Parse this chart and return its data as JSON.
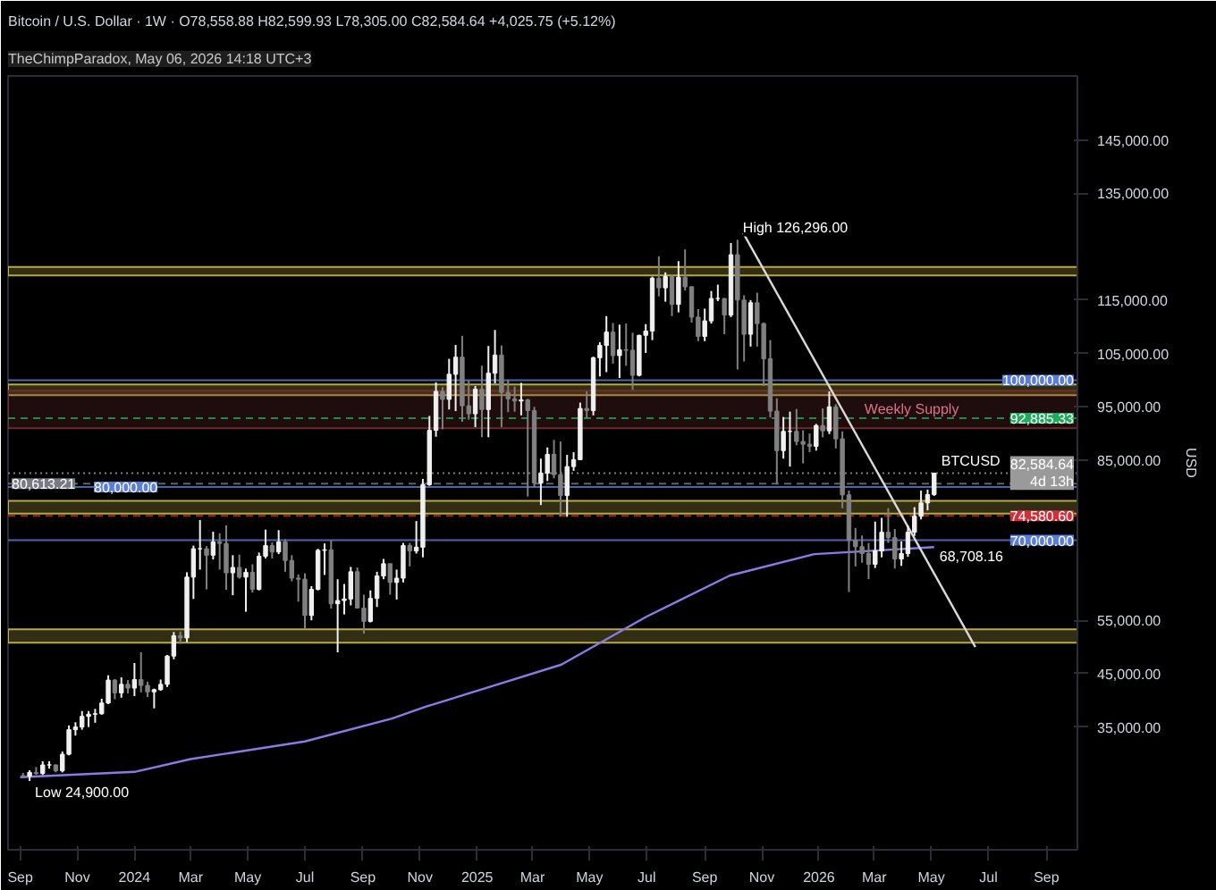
{
  "chart_data": {
    "type": "candlestick",
    "title": "Bitcoin / U.S. Dollar · 1W · O78,558.88 H82,599.93 L78,305.00 C82,584.64 +4,025.75 (+5.12%)",
    "ylabel": "USD",
    "annotations": [
      "TheChimpParadox, May 06, 2026 14:18 UTC+3",
      {
        "text": "BTCUSD",
        "x": "2026-05-06",
        "y": 82584.64
      },
      {
        "text": "High 126,296.00",
        "x": "2025-10-06",
        "y": 126296
      },
      {
        "text": "68,708.16",
        "x": "2026-05-04",
        "y": 68708.16
      },
      {
        "text": "Low 24,900.00",
        "x": "2023-09-11",
        "y": 24900
      }
    ],
    "xlim": [
      "2023-08-19",
      "2026-10-04"
    ],
    "xticks": [
      {
        "value": "2023-09-01",
        "label": "Sep"
      },
      {
        "value": "2023-11-01",
        "label": "Nov"
      },
      {
        "value": "2024-01-01",
        "label": "2024"
      },
      {
        "value": "2024-03-01",
        "label": "Mar"
      },
      {
        "value": "2024-05-01",
        "label": "May"
      },
      {
        "value": "2024-07-01",
        "label": "Jul"
      },
      {
        "value": "2024-09-01",
        "label": "Sep"
      },
      {
        "value": "2024-11-01",
        "label": "Nov"
      },
      {
        "value": "2025-01-01",
        "label": "2025"
      },
      {
        "value": "2025-03-01",
        "label": "Mar"
      },
      {
        "value": "2025-05-01",
        "label": "May"
      },
      {
        "value": "2025-07-01",
        "label": "Jul"
      },
      {
        "value": "2025-09-01",
        "label": "Sep"
      },
      {
        "value": "2025-11-01",
        "label": "Nov"
      },
      {
        "value": "2026-01-01",
        "label": "2026"
      },
      {
        "value": "2026-03-01",
        "label": "Mar"
      },
      {
        "value": "2026-05-01",
        "label": "May"
      },
      {
        "value": "2026-07-01",
        "label": "Jul"
      },
      {
        "value": "2026-09-01",
        "label": "Sep"
      }
    ],
    "ylim": [
      12000,
      157000
    ],
    "yticks": [
      {
        "value": 35000,
        "label": "35,000.00"
      },
      {
        "value": 45000,
        "label": "45,000.00"
      },
      {
        "value": 55000,
        "label": "55,000.00"
      },
      {
        "value": 85000,
        "label": "85,000.00"
      },
      {
        "value": 95000,
        "label": "95,000.00"
      },
      {
        "value": 105000,
        "label": "105,000.00"
      },
      {
        "value": 115000,
        "label": "115,000.00"
      },
      {
        "value": 135000,
        "label": "135,000.00"
      },
      {
        "value": 145000,
        "label": "145,000.00"
      }
    ],
    "grid": false,
    "ref_lines": [
      {
        "axis": "y",
        "value": 100000,
        "label": "100,000.00",
        "color": "#5b7fd6",
        "line_style": "solid"
      },
      {
        "axis": "y",
        "value": 80000,
        "label": "80,000.00",
        "color": "#5b7fd6",
        "line_style": "solid"
      },
      {
        "axis": "y",
        "value": 70000,
        "label": "70,000.00",
        "color": "#5b7fd6",
        "line_style": "solid"
      },
      {
        "axis": "y",
        "value": 82584.64,
        "label": "82,584.64\n4d 13h",
        "color": "#9a9a9a",
        "line_style": "dotted"
      },
      {
        "axis": "y",
        "value": 92885.33,
        "label": "92,885.33",
        "color": "#22ab5e",
        "line_style": "dashed"
      },
      {
        "axis": "y",
        "value": 80613.21,
        "label": "80,613.21",
        "color": "#787b86",
        "line_style": "dashed"
      },
      {
        "axis": "y",
        "value": 74580.6,
        "label": "74,580.60",
        "color": "#d0303a",
        "line_style": "dashed"
      }
    ],
    "bands": [
      {
        "axis": "y",
        "from": 119600,
        "to": 121200,
        "color": "#c8b84a"
      },
      {
        "axis": "y",
        "from": 97200,
        "to": 99200,
        "color": "#c8b84a"
      },
      {
        "axis": "y",
        "from": 91000,
        "to": 98000,
        "label": "Weekly Supply",
        "color": "#7a2f30"
      },
      {
        "axis": "y",
        "from": 75000,
        "to": 77400,
        "color": "#c8b84a"
      },
      {
        "axis": "y",
        "from": 50800,
        "to": 53300,
        "color": "#c8b84a"
      }
    ],
    "series": [
      {
        "type": "line",
        "color": "#8c7ae6",
        "x": [
          "2023-09-01",
          "2024-01-01",
          "2024-03-01",
          "2024-07-01",
          "2024-10-02",
          "2024-11-07",
          "2025-04-01",
          "2025-07-01",
          "2025-09-28",
          "2025-12-27",
          "2026-05-04"
        ],
        "values": [
          25600,
          26600,
          29000,
          32300,
          36600,
          38800,
          46700,
          55700,
          63400,
          67400,
          68708.16
        ]
      },
      {
        "type": "line",
        "color": "#d9d9d9",
        "x": [
          "2025-10-12",
          "2026-06-17"
        ],
        "values": [
          127600,
          50000
        ]
      },
      {
        "colors": [
          "#808080",
          "#f0f0f0",
          "#808080",
          "#f0f0f0",
          "#f0f0f0",
          "#808080",
          "#f0f0f0",
          "#f0f0f0",
          "#f0f0f0",
          "#f0f0f0",
          "#f0f0f0",
          "#f0f0f0",
          "#f0f0f0",
          "#f0f0f0",
          "#808080",
          "#f0f0f0",
          "#808080",
          "#f0f0f0",
          "#808080",
          "#808080",
          "#f0f0f0",
          "#f0f0f0",
          "#f0f0f0",
          "#f0f0f0",
          "#808080",
          "#f0f0f0",
          "#f0f0f0",
          "#f0f0f0",
          "#808080",
          "#f0f0f0",
          "#808080",
          "#808080",
          "#f0f0f0",
          "#808080",
          "#f0f0f0",
          "#808080",
          "#f0f0f0",
          "#f0f0f0",
          "#808080",
          "#f0f0f0",
          "#808080",
          "#808080",
          "#808080",
          "#808080",
          "#f0f0f0",
          "#f0f0f0",
          "#f0f0f0",
          "#808080",
          "#f0f0f0",
          "#f0f0f0",
          "#f0f0f0",
          "#808080",
          "#808080",
          "#f0f0f0",
          "#f0f0f0",
          "#f0f0f0",
          "#808080",
          "#f0f0f0",
          "#f0f0f0",
          "#808080",
          "#f0f0f0",
          "#f0f0f0",
          "#f0f0f0",
          "#f0f0f0",
          "#808080",
          "#f0f0f0",
          "#f0f0f0",
          "#808080",
          "#808080",
          "#f0f0f0",
          "#808080",
          "#f0f0f0",
          "#f0f0f0",
          "#808080",
          "#808080",
          "#808080",
          "#f0f0f0",
          "#808080",
          "#808080",
          "#f0f0f0",
          "#f0f0f0",
          "#808080",
          "#808080",
          "#f0f0f0",
          "#f0f0f0",
          "#f0f0f0",
          "#808080",
          "#f0f0f0",
          "#f0f0f0",
          "#f0f0f0",
          "#808080",
          "#f0f0f0",
          "#808080",
          "#808080",
          "#f0f0f0",
          "#f0f0f0",
          "#f0f0f0",
          "#808080",
          "#f0f0f0",
          "#808080",
          "#f0f0f0",
          "#808080",
          "#808080",
          "#808080",
          "#f0f0f0",
          "#f0f0f0",
          "#f0f0f0",
          "#808080",
          "#f0f0f0",
          "#808080",
          "#808080",
          "#f0f0f0",
          "#808080",
          "#808080",
          "#808080",
          "#808080",
          "#f0f0f0",
          "#f0f0f0",
          "#808080",
          "#808080",
          "#808080",
          "#f0f0f0",
          "#808080",
          "#f0f0f0",
          "#808080",
          "#808080",
          "#808080",
          "#808080",
          "#808080",
          "#808080",
          "#f0f0f0",
          "#f0f0f0",
          "#808080",
          "#808080",
          "#f0f0f0",
          "#f0f0f0",
          "#f0f0f0",
          "#f0f0f0",
          "#f0f0f0",
          "#f0f0f0"
        ],
        "x": [
          "2023-09-04",
          "2023-09-11",
          "2023-09-18",
          "2023-09-25",
          "2023-10-02",
          "2023-10-09",
          "2023-10-16",
          "2023-10-23",
          "2023-10-30",
          "2023-11-06",
          "2023-11-13",
          "2023-11-20",
          "2023-11-27",
          "2023-12-04",
          "2023-12-11",
          "2023-12-18",
          "2023-12-25",
          "2024-01-01",
          "2024-01-08",
          "2024-01-15",
          "2024-01-22",
          "2024-01-29",
          "2024-02-05",
          "2024-02-12",
          "2024-02-19",
          "2024-02-26",
          "2024-03-04",
          "2024-03-11",
          "2024-03-18",
          "2024-03-25",
          "2024-04-01",
          "2024-04-08",
          "2024-04-15",
          "2024-04-22",
          "2024-04-29",
          "2024-05-06",
          "2024-05-13",
          "2024-05-20",
          "2024-05-27",
          "2024-06-03",
          "2024-06-10",
          "2024-06-17",
          "2024-06-24",
          "2024-07-01",
          "2024-07-08",
          "2024-07-15",
          "2024-07-22",
          "2024-07-29",
          "2024-08-05",
          "2024-08-12",
          "2024-08-19",
          "2024-08-26",
          "2024-09-02",
          "2024-09-09",
          "2024-09-16",
          "2024-09-23",
          "2024-09-30",
          "2024-10-07",
          "2024-10-14",
          "2024-10-21",
          "2024-10-28",
          "2024-11-04",
          "2024-11-11",
          "2024-11-18",
          "2024-11-25",
          "2024-12-02",
          "2024-12-09",
          "2024-12-16",
          "2024-12-23",
          "2024-12-30",
          "2025-01-06",
          "2025-01-13",
          "2025-01-20",
          "2025-01-27",
          "2025-02-03",
          "2025-02-10",
          "2025-02-17",
          "2025-02-24",
          "2025-03-03",
          "2025-03-10",
          "2025-03-17",
          "2025-03-24",
          "2025-03-31",
          "2025-04-07",
          "2025-04-14",
          "2025-04-21",
          "2025-04-28",
          "2025-05-05",
          "2025-05-12",
          "2025-05-19",
          "2025-05-26",
          "2025-06-02",
          "2025-06-09",
          "2025-06-16",
          "2025-06-23",
          "2025-06-30",
          "2025-07-07",
          "2025-07-14",
          "2025-07-21",
          "2025-07-28",
          "2025-08-04",
          "2025-08-11",
          "2025-08-18",
          "2025-08-25",
          "2025-09-01",
          "2025-09-08",
          "2025-09-15",
          "2025-09-22",
          "2025-09-29",
          "2025-10-06",
          "2025-10-13",
          "2025-10-20",
          "2025-10-27",
          "2025-11-03",
          "2025-11-10",
          "2025-11-17",
          "2025-11-24",
          "2025-12-01",
          "2025-12-08",
          "2025-12-15",
          "2025-12-22",
          "2025-12-29",
          "2026-01-05",
          "2026-01-12",
          "2026-01-19",
          "2026-01-26",
          "2026-02-02",
          "2026-02-09",
          "2026-02-16",
          "2026-02-23",
          "2026-03-02",
          "2026-03-09",
          "2026-03-16",
          "2026-03-23",
          "2026-03-30",
          "2026-04-06",
          "2026-04-13",
          "2026-04-20",
          "2026-04-27",
          "2026-05-04"
        ],
        "ohlc": [
          [
            25900,
            26400,
            25400,
            25800
          ],
          [
            25800,
            26900,
            24900,
            26500
          ],
          [
            26500,
            27500,
            26000,
            26300
          ],
          [
            26300,
            28600,
            26000,
            27900
          ],
          [
            27900,
            28600,
            27200,
            27900
          ],
          [
            27900,
            28000,
            26500,
            26800
          ],
          [
            26800,
            30400,
            26500,
            29900
          ],
          [
            29900,
            35300,
            29700,
            34500
          ],
          [
            34500,
            35900,
            33400,
            35000
          ],
          [
            35000,
            38000,
            34500,
            37000
          ],
          [
            37000,
            38000,
            35000,
            37400
          ],
          [
            37400,
            38400,
            35800,
            37500
          ],
          [
            37500,
            40300,
            37300,
            39500
          ],
          [
            39500,
            44700,
            39300,
            43800
          ],
          [
            43800,
            44000,
            40200,
            41400
          ],
          [
            41400,
            44300,
            40500,
            43000
          ],
          [
            43000,
            43800,
            41300,
            42300
          ],
          [
            42300,
            47000,
            40800,
            43900
          ],
          [
            43900,
            49000,
            41500,
            42800
          ],
          [
            42800,
            43500,
            40600,
            41600
          ],
          [
            41600,
            42200,
            38500,
            42000
          ],
          [
            42000,
            43900,
            41800,
            43000
          ],
          [
            43000,
            48500,
            42500,
            48300
          ],
          [
            48300,
            52800,
            47700,
            52100
          ],
          [
            52100,
            52900,
            50600,
            51700
          ],
          [
            51700,
            64000,
            50900,
            63100
          ],
          [
            63100,
            69000,
            59000,
            68400
          ],
          [
            68400,
            73800,
            64500,
            68400
          ],
          [
            68400,
            68900,
            60800,
            67200
          ],
          [
            67200,
            71600,
            66400,
            69700
          ],
          [
            69700,
            71300,
            64500,
            69400
          ],
          [
            69400,
            72800,
            60700,
            63900
          ],
          [
            63900,
            67200,
            59700,
            64900
          ],
          [
            64900,
            67300,
            62800,
            63100
          ],
          [
            63100,
            64700,
            56600,
            64000
          ],
          [
            64000,
            65500,
            60200,
            60800
          ],
          [
            60800,
            67700,
            60600,
            67000
          ],
          [
            67000,
            72000,
            66600,
            69000
          ],
          [
            69000,
            69600,
            66600,
            67800
          ],
          [
            67800,
            71900,
            67400,
            69700
          ],
          [
            69700,
            70200,
            64100,
            66200
          ],
          [
            66200,
            67200,
            62300,
            62900
          ],
          [
            62900,
            63600,
            58500,
            62700
          ],
          [
            62700,
            63800,
            53500,
            55900
          ],
          [
            55900,
            61400,
            55000,
            60800
          ],
          [
            60800,
            68400,
            60600,
            68100
          ],
          [
            68100,
            69400,
            63500,
            68200
          ],
          [
            68200,
            70000,
            57200,
            58100
          ],
          [
            58100,
            62700,
            49000,
            58700
          ],
          [
            58700,
            61800,
            56100,
            59000
          ],
          [
            59000,
            65000,
            57800,
            64100
          ],
          [
            64100,
            64900,
            57200,
            57300
          ],
          [
            57300,
            59800,
            52500,
            54800
          ],
          [
            54800,
            60600,
            54600,
            59100
          ],
          [
            59100,
            64100,
            57500,
            63300
          ],
          [
            63300,
            66500,
            62700,
            65600
          ],
          [
            65600,
            65600,
            59800,
            62100
          ],
          [
            62100,
            64500,
            58900,
            62900
          ],
          [
            62900,
            69500,
            62100,
            69000
          ],
          [
            69000,
            69500,
            65100,
            68000
          ],
          [
            68000,
            73600,
            67500,
            68700
          ],
          [
            68700,
            81500,
            66800,
            80400
          ],
          [
            80400,
            93300,
            80200,
            90600
          ],
          [
            90600,
            99600,
            89400,
            97900
          ],
          [
            97900,
            98700,
            90800,
            96400
          ],
          [
            96400,
            104000,
            94500,
            101100
          ],
          [
            101100,
            106600,
            94200,
            104300
          ],
          [
            104300,
            108300,
            92200,
            95200
          ],
          [
            95200,
            99900,
            92600,
            93700
          ],
          [
            93700,
            98900,
            91200,
            98300
          ],
          [
            98300,
            102700,
            89300,
            94500
          ],
          [
            94500,
            106400,
            89300,
            101300
          ],
          [
            101300,
            109400,
            99400,
            104700
          ],
          [
            104700,
            106500,
            91200,
            97700
          ],
          [
            97700,
            100100,
            94000,
            96500
          ],
          [
            96500,
            98800,
            94100,
            96100
          ],
          [
            96100,
            99500,
            93400,
            96300
          ],
          [
            96300,
            96500,
            78200,
            94300
          ],
          [
            94300,
            95000,
            80000,
            80700
          ],
          [
            80700,
            85300,
            76600,
            82600
          ],
          [
            82600,
            87400,
            81100,
            86100
          ],
          [
            86100,
            88800,
            81600,
            82300
          ],
          [
            82300,
            88500,
            74500,
            78400
          ],
          [
            78400,
            86000,
            74400,
            83800
          ],
          [
            83800,
            86500,
            83000,
            85100
          ],
          [
            85100,
            95800,
            85000,
            94700
          ],
          [
            94700,
            97900,
            92900,
            94300
          ],
          [
            94300,
            104400,
            93400,
            104200
          ],
          [
            104200,
            107100,
            100700,
            106500
          ],
          [
            106500,
            112000,
            101500,
            109000
          ],
          [
            109000,
            110700,
            103100,
            104600
          ],
          [
            104600,
            110400,
            100400,
            105700
          ],
          [
            105700,
            110600,
            102700,
            105600
          ],
          [
            105600,
            108900,
            98200,
            100900
          ],
          [
            100900,
            108500,
            100700,
            108400
          ],
          [
            108400,
            110500,
            105100,
            109200
          ],
          [
            109200,
            119400,
            107500,
            119100
          ],
          [
            119100,
            123200,
            115700,
            117300
          ],
          [
            117300,
            120200,
            114700,
            119400
          ],
          [
            119400,
            119800,
            112000,
            114200
          ],
          [
            114200,
            122300,
            112700,
            119300
          ],
          [
            119300,
            124500,
            116800,
            117500
          ],
          [
            117500,
            117600,
            110800,
            111800
          ],
          [
            111800,
            113300,
            107300,
            108200
          ],
          [
            108200,
            113400,
            107300,
            111100
          ],
          [
            111100,
            116700,
            110600,
            115300
          ],
          [
            115300,
            117900,
            114800,
            115300
          ],
          [
            115300,
            115400,
            108600,
            112200
          ],
          [
            112200,
            125700,
            111800,
            123500
          ],
          [
            123500,
            126296,
            102000,
            115000
          ],
          [
            115000,
            115900,
            103500,
            108600
          ],
          [
            108600,
            115000,
            106300,
            114500
          ],
          [
            114500,
            116400,
            106300,
            110600
          ],
          [
            110600,
            110800,
            98900,
            104000
          ],
          [
            104000,
            107500,
            93000,
            94200
          ],
          [
            94200,
            96600,
            80600,
            86800
          ],
          [
            86800,
            93100,
            85300,
            90400
          ],
          [
            90400,
            94100,
            83800,
            90400
          ],
          [
            90400,
            94600,
            87800,
            88500
          ],
          [
            88500,
            90600,
            84400,
            88000
          ],
          [
            88000,
            90000,
            86500,
            87600
          ],
          [
            87600,
            91800,
            86800,
            91500
          ],
          [
            91500,
            94700,
            89300,
            90500
          ],
          [
            90500,
            97900,
            89900,
            95000
          ],
          [
            95000,
            95500,
            87200,
            89000
          ],
          [
            89000,
            90400,
            76000,
            78500
          ],
          [
            78500,
            79300,
            60300,
            70000
          ],
          [
            70000,
            72300,
            65100,
            68800
          ],
          [
            68800,
            70900,
            65800,
            67500
          ],
          [
            67500,
            69500,
            62700,
            65500
          ],
          [
            65500,
            73500,
            64800,
            68000
          ],
          [
            68000,
            74200,
            66800,
            71500
          ],
          [
            71500,
            76000,
            69500,
            70500
          ],
          [
            70500,
            72100,
            64700,
            66500
          ],
          [
            66500,
            69800,
            65200,
            67500
          ],
          [
            67500,
            72800,
            66900,
            71500
          ],
          [
            71500,
            76200,
            70800,
            74500
          ],
          [
            74500,
            79300,
            73900,
            77000
          ],
          [
            77000,
            79500,
            75600,
            78558.88
          ],
          [
            78558.88,
            82599.93,
            78305,
            82584.64
          ]
        ]
      }
    ]
  }
}
